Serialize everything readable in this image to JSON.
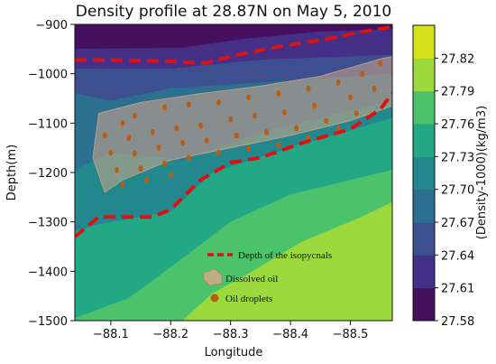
{
  "chart_data": {
    "type": "heatmap",
    "title": "Density profile at 28.87N on May 5, 2010",
    "xlabel": "Longitude",
    "ylabel": "Depth(m)",
    "xlim": [
      -88.04,
      -88.57
    ],
    "ylim": [
      -1500,
      -900
    ],
    "x_ticks": [
      -88.1,
      -88.2,
      -88.3,
      -88.4,
      -88.5
    ],
    "x_tick_labels": [
      "−88.1",
      "−88.2",
      "−88.3",
      "−88.4",
      "−88.5"
    ],
    "y_ticks": [
      -900,
      -1000,
      -1100,
      -1200,
      -1300,
      -1400,
      -1500
    ],
    "y_tick_labels": [
      "−900",
      "−1000",
      "−1100",
      "−1200",
      "−1300",
      "−1400",
      "−1500"
    ],
    "colorbar": {
      "label": "(Density-1000)(kg/m3)",
      "levels": [
        27.58,
        27.61,
        27.64,
        27.67,
        27.7,
        27.73,
        27.76,
        27.79,
        27.82
      ],
      "level_labels": [
        "27.58",
        "27.61",
        "27.64",
        "27.67",
        "27.70",
        "27.73",
        "27.76",
        "27.79",
        "27.82"
      ],
      "colors": [
        "#45115e",
        "#462f86",
        "#3d4f8e",
        "#2d6f8e",
        "#23888d",
        "#22a884",
        "#4cc26c",
        "#9bd93c",
        "#d8e21a"
      ]
    },
    "contour_bands": [
      {
        "level_min": 27.58,
        "level_max": 27.61,
        "upper_boundary": [
          [
            -88.04,
            -900
          ],
          [
            -88.57,
            -900
          ]
        ],
        "lower_boundary": [
          [
            -88.04,
            -950
          ],
          [
            -88.22,
            -948
          ],
          [
            -88.32,
            -930
          ],
          [
            -88.45,
            -915
          ],
          [
            -88.57,
            -910
          ]
        ]
      },
      {
        "level_min": 27.61,
        "level_max": 27.64,
        "upper_boundary": [
          [
            -88.04,
            -950
          ],
          [
            -88.22,
            -948
          ],
          [
            -88.32,
            -930
          ],
          [
            -88.45,
            -915
          ],
          [
            -88.57,
            -910
          ]
        ],
        "lower_boundary": [
          [
            -88.04,
            -990
          ],
          [
            -88.2,
            -990
          ],
          [
            -88.35,
            -972
          ],
          [
            -88.57,
            -962
          ]
        ]
      },
      {
        "level_min": 27.64,
        "level_max": 27.67,
        "upper_boundary": [
          [
            -88.04,
            -990
          ],
          [
            -88.2,
            -990
          ],
          [
            -88.35,
            -972
          ],
          [
            -88.57,
            -962
          ]
        ],
        "lower_boundary": [
          [
            -88.04,
            -1040
          ],
          [
            -88.1,
            -1055
          ],
          [
            -88.2,
            -1030
          ],
          [
            -88.35,
            -1018
          ],
          [
            -88.57,
            -1000
          ]
        ]
      },
      {
        "level_min": 27.67,
        "level_max": 27.7,
        "upper_boundary": [
          [
            -88.04,
            -1040
          ],
          [
            -88.1,
            -1055
          ],
          [
            -88.2,
            -1030
          ],
          [
            -88.35,
            -1018
          ],
          [
            -88.57,
            -1000
          ]
        ],
        "lower_boundary": [
          [
            -88.04,
            -1195
          ],
          [
            -88.1,
            -1160
          ],
          [
            -88.22,
            -1175
          ],
          [
            -88.35,
            -1120
          ],
          [
            -88.57,
            -1055
          ]
        ]
      },
      {
        "level_min": 27.7,
        "level_max": 27.73,
        "upper_boundary": [
          [
            -88.04,
            -1195
          ],
          [
            -88.1,
            -1160
          ],
          [
            -88.22,
            -1175
          ],
          [
            -88.35,
            -1120
          ],
          [
            -88.57,
            -1055
          ]
        ],
        "lower_boundary": [
          [
            -88.04,
            -1320
          ],
          [
            -88.08,
            -1305
          ],
          [
            -88.2,
            -1280
          ],
          [
            -88.27,
            -1200
          ],
          [
            -88.4,
            -1150
          ],
          [
            -88.57,
            -1090
          ]
        ]
      },
      {
        "level_min": 27.73,
        "level_max": 27.76,
        "upper_boundary": [
          [
            -88.04,
            -1320
          ],
          [
            -88.08,
            -1305
          ],
          [
            -88.2,
            -1280
          ],
          [
            -88.27,
            -1200
          ],
          [
            -88.4,
            -1150
          ],
          [
            -88.57,
            -1090
          ]
        ],
        "lower_boundary": [
          [
            -88.04,
            -1495
          ],
          [
            -88.13,
            -1455
          ],
          [
            -88.23,
            -1365
          ],
          [
            -88.3,
            -1300
          ],
          [
            -88.4,
            -1245
          ],
          [
            -88.57,
            -1195
          ]
        ]
      },
      {
        "level_min": 27.76,
        "level_max": 27.79,
        "upper_boundary": [
          [
            -88.04,
            -1495
          ],
          [
            -88.13,
            -1455
          ],
          [
            -88.23,
            -1365
          ],
          [
            -88.3,
            -1300
          ],
          [
            -88.4,
            -1245
          ],
          [
            -88.57,
            -1195
          ]
        ],
        "lower_boundary": [
          [
            -88.04,
            -1500
          ],
          [
            -88.22,
            -1500
          ],
          [
            -88.27,
            -1445
          ],
          [
            -88.33,
            -1405
          ],
          [
            -88.42,
            -1340
          ],
          [
            -88.52,
            -1290
          ],
          [
            -88.57,
            -1260
          ]
        ]
      },
      {
        "level_min": 27.79,
        "level_max": 27.82,
        "upper_boundary": [
          [
            -88.04,
            -1500
          ],
          [
            -88.22,
            -1500
          ],
          [
            -88.27,
            -1445
          ],
          [
            -88.33,
            -1405
          ],
          [
            -88.42,
            -1340
          ],
          [
            -88.52,
            -1290
          ],
          [
            -88.57,
            -1260
          ]
        ],
        "lower_boundary": [
          [
            -88.04,
            -1500
          ],
          [
            -88.57,
            -1500
          ]
        ]
      }
    ],
    "isopycnal_lines": [
      {
        "points": [
          [
            -88.04,
            -972
          ],
          [
            -88.1,
            -972
          ],
          [
            -88.2,
            -975
          ],
          [
            -88.26,
            -978
          ],
          [
            -88.31,
            -962
          ],
          [
            -88.38,
            -945
          ],
          [
            -88.45,
            -932
          ],
          [
            -88.52,
            -915
          ],
          [
            -88.57,
            -905
          ]
        ]
      },
      {
        "points": [
          [
            -88.04,
            -1330
          ],
          [
            -88.08,
            -1290
          ],
          [
            -88.17,
            -1290
          ],
          [
            -88.2,
            -1275
          ],
          [
            -88.25,
            -1215
          ],
          [
            -88.3,
            -1180
          ],
          [
            -88.35,
            -1170
          ],
          [
            -88.42,
            -1140
          ],
          [
            -88.5,
            -1112
          ],
          [
            -88.55,
            -1072
          ],
          [
            -88.57,
            -1040
          ]
        ]
      }
    ],
    "dissolved_oil_region": [
      [
        -88.08,
        -1080
      ],
      [
        -88.15,
        -1058
      ],
      [
        -88.25,
        -1040
      ],
      [
        -88.35,
        -1025
      ],
      [
        -88.45,
        -1005
      ],
      [
        -88.55,
        -970
      ],
      [
        -88.57,
        -965
      ],
      [
        -88.57,
        -1065
      ],
      [
        -88.5,
        -1095
      ],
      [
        -88.4,
        -1125
      ],
      [
        -88.3,
        -1150
      ],
      [
        -88.2,
        -1175
      ],
      [
        -88.12,
        -1215
      ],
      [
        -88.09,
        -1240
      ],
      [
        -88.07,
        -1170
      ]
    ],
    "oil_droplets": [
      [
        -88.12,
        -1100
      ],
      [
        -88.14,
        -1085
      ],
      [
        -88.19,
        -1068
      ],
      [
        -88.23,
        -1062
      ],
      [
        -88.28,
        -1058
      ],
      [
        -88.33,
        -1048
      ],
      [
        -88.38,
        -1040
      ],
      [
        -88.43,
        -1030
      ],
      [
        -88.48,
        -1018
      ],
      [
        -88.52,
        -1000
      ],
      [
        -88.55,
        -978
      ],
      [
        -88.09,
        -1125
      ],
      [
        -88.13,
        -1130
      ],
      [
        -88.17,
        -1118
      ],
      [
        -88.21,
        -1110
      ],
      [
        -88.25,
        -1105
      ],
      [
        -88.3,
        -1092
      ],
      [
        -88.34,
        -1085
      ],
      [
        -88.39,
        -1078
      ],
      [
        -88.44,
        -1065
      ],
      [
        -88.5,
        -1048
      ],
      [
        -88.54,
        -1030
      ],
      [
        -88.1,
        -1160
      ],
      [
        -88.14,
        -1162
      ],
      [
        -88.18,
        -1150
      ],
      [
        -88.22,
        -1140
      ],
      [
        -88.26,
        -1135
      ],
      [
        -88.31,
        -1125
      ],
      [
        -88.36,
        -1118
      ],
      [
        -88.41,
        -1110
      ],
      [
        -88.46,
        -1095
      ],
      [
        -88.51,
        -1080
      ],
      [
        -88.11,
        -1195
      ],
      [
        -88.15,
        -1192
      ],
      [
        -88.19,
        -1182
      ],
      [
        -88.23,
        -1170
      ],
      [
        -88.28,
        -1160
      ],
      [
        -88.33,
        -1152
      ],
      [
        -88.38,
        -1145
      ],
      [
        -88.43,
        -1130
      ],
      [
        -88.48,
        -1112
      ],
      [
        -88.12,
        -1225
      ],
      [
        -88.16,
        -1215
      ],
      [
        -88.2,
        -1205
      ]
    ],
    "legend": {
      "position": "bottom-center",
      "entries": [
        {
          "kind": "dashed-line",
          "label": "Depth of the isopycnals",
          "color": "#dd1111"
        },
        {
          "kind": "patch",
          "label": "Dissolved oil",
          "color": "#d2a88c"
        },
        {
          "kind": "dot",
          "label": "Oil droplets",
          "color": "#b85c16"
        }
      ]
    }
  }
}
